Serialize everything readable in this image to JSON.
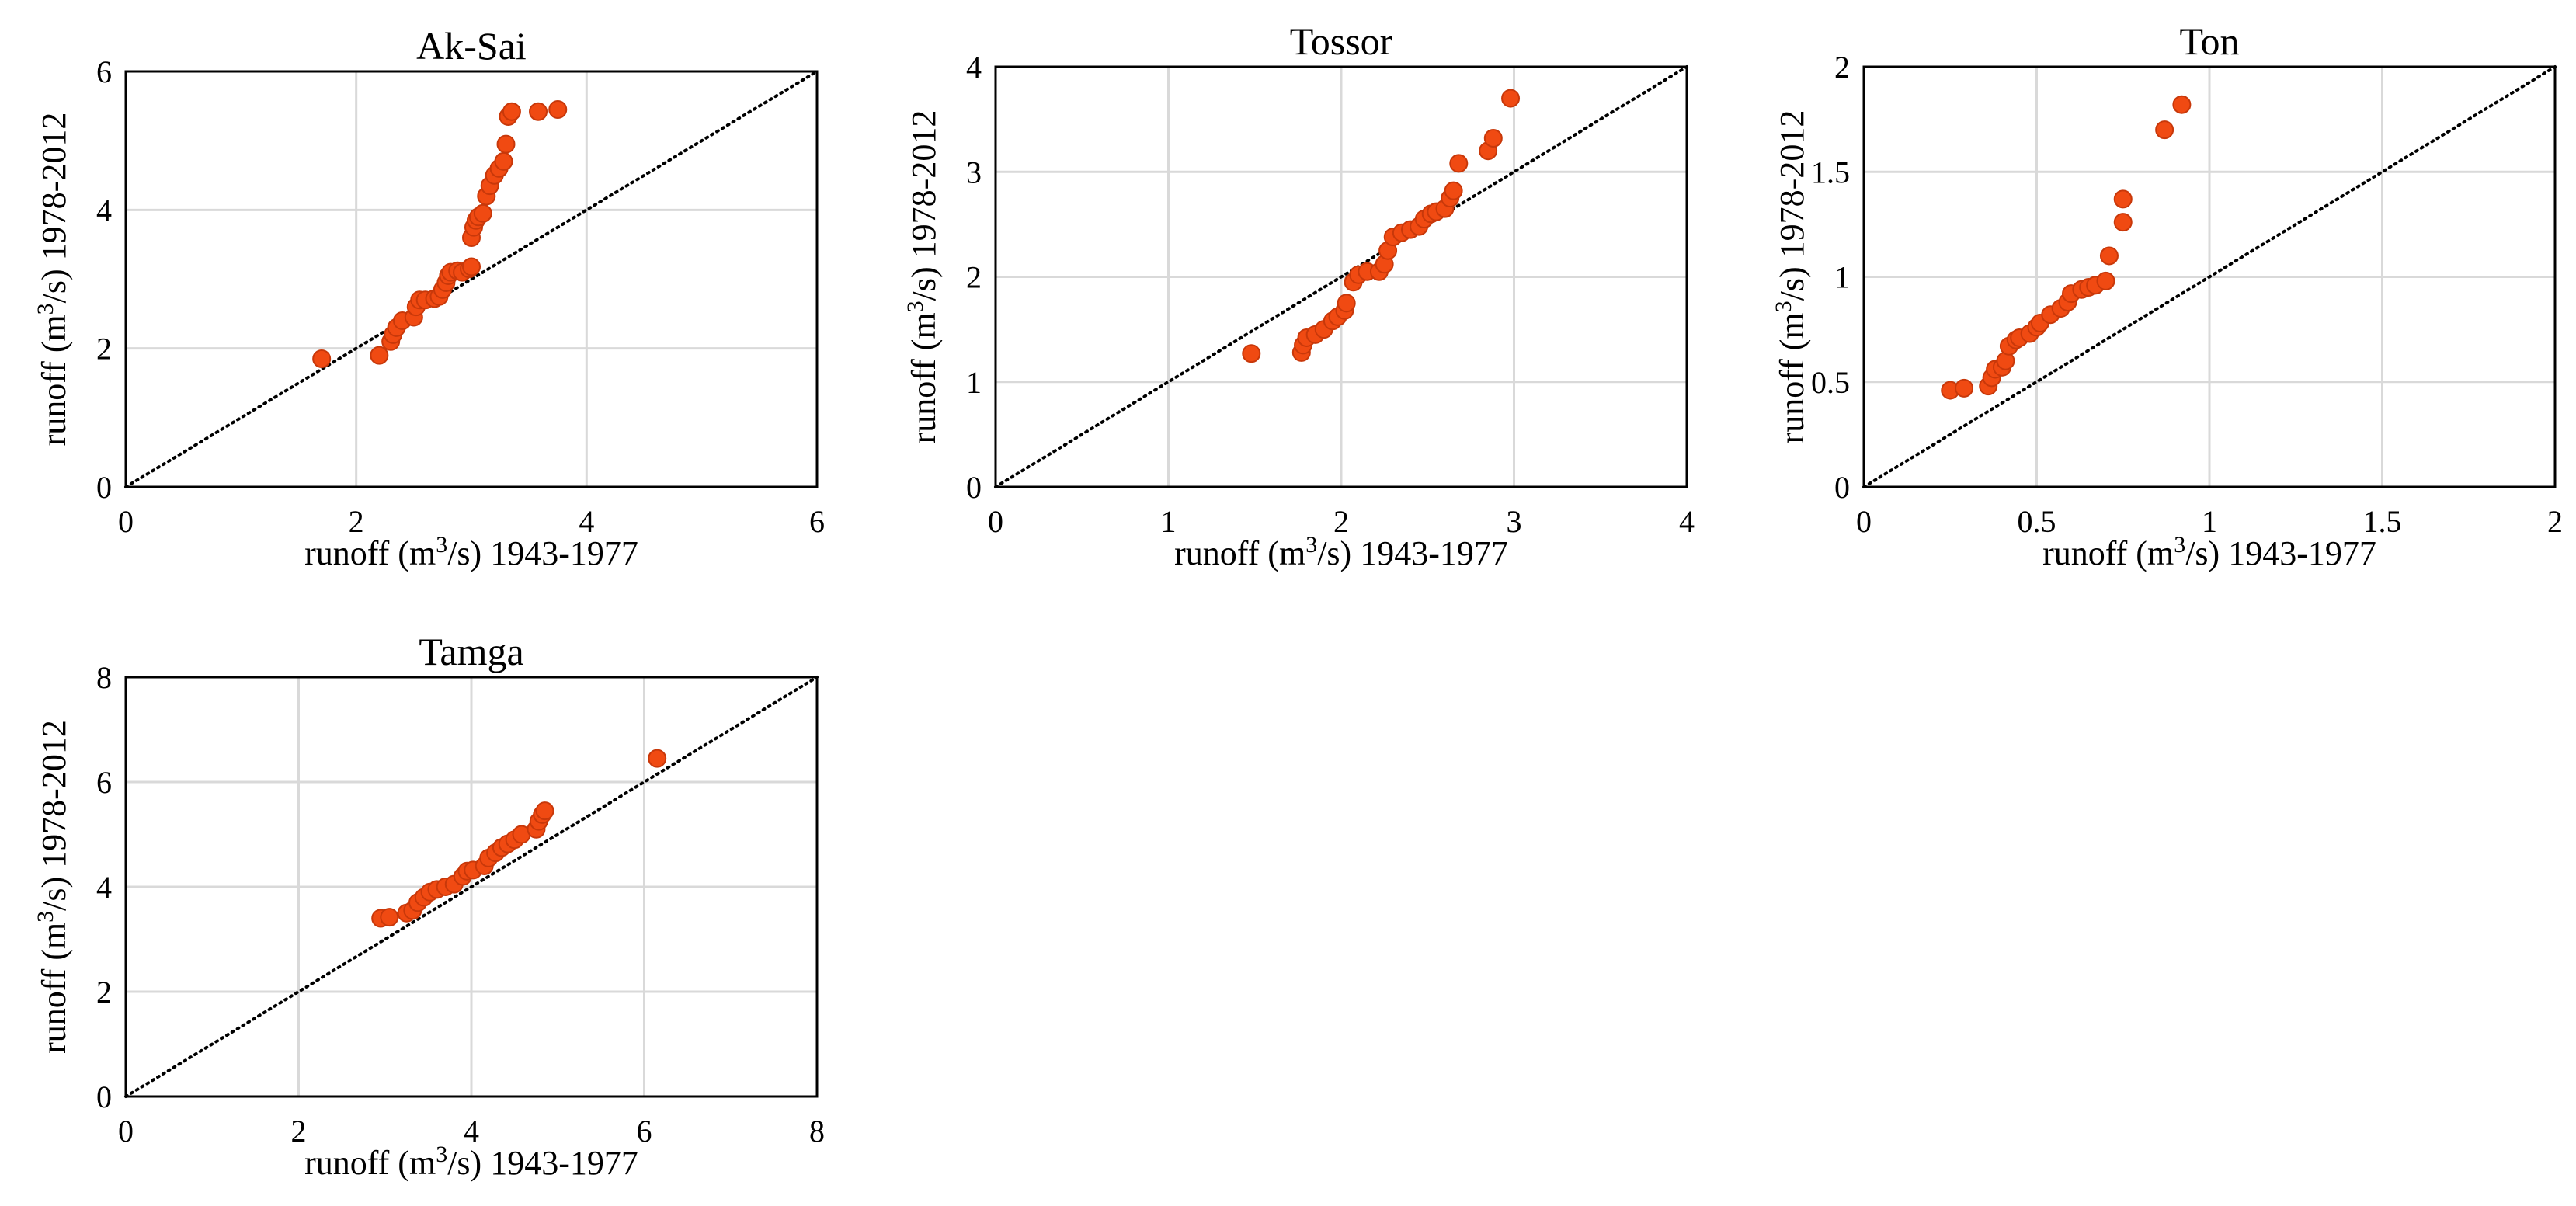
{
  "chart_data": [
    {
      "type": "scatter",
      "title": "Ak-Sai",
      "xlabel": {
        "pre": "runoff (m",
        "sup": "3",
        "post": "/s) 1943-1977"
      },
      "ylabel": {
        "pre": "runoff (m",
        "sup": "3",
        "post": "/s) 1978-2012"
      },
      "xlim": [
        0,
        6
      ],
      "ylim": [
        0,
        6
      ],
      "xticks": [
        0,
        2,
        4,
        6
      ],
      "yticks": [
        0,
        2,
        4,
        6
      ],
      "xtick_labels": [
        "0",
        "2",
        "4",
        "6"
      ],
      "ytick_labels": [
        "0",
        "2",
        "4",
        "6"
      ],
      "reference_line": "1:1 dotted",
      "grid": true,
      "points": [
        [
          1.7,
          1.85
        ],
        [
          2.2,
          1.9
        ],
        [
          2.3,
          2.1
        ],
        [
          2.32,
          2.2
        ],
        [
          2.35,
          2.3
        ],
        [
          2.4,
          2.4
        ],
        [
          2.5,
          2.45
        ],
        [
          2.52,
          2.6
        ],
        [
          2.55,
          2.7
        ],
        [
          2.6,
          2.7
        ],
        [
          2.68,
          2.72
        ],
        [
          2.72,
          2.75
        ],
        [
          2.75,
          2.85
        ],
        [
          2.78,
          2.95
        ],
        [
          2.8,
          3.05
        ],
        [
          2.82,
          3.1
        ],
        [
          2.88,
          3.12
        ],
        [
          2.92,
          3.1
        ],
        [
          2.98,
          3.15
        ],
        [
          3.0,
          3.18
        ],
        [
          3.0,
          3.6
        ],
        [
          3.02,
          3.75
        ],
        [
          3.04,
          3.85
        ],
        [
          3.06,
          3.9
        ],
        [
          3.1,
          3.95
        ],
        [
          3.13,
          4.2
        ],
        [
          3.16,
          4.35
        ],
        [
          3.2,
          4.5
        ],
        [
          3.24,
          4.6
        ],
        [
          3.28,
          4.7
        ],
        [
          3.3,
          4.95
        ],
        [
          3.32,
          5.35
        ],
        [
          3.35,
          5.42
        ],
        [
          3.58,
          5.42
        ],
        [
          3.75,
          5.45
        ]
      ]
    },
    {
      "type": "scatter",
      "title": "Tossor",
      "xlabel": {
        "pre": "runoff (m",
        "sup": "3",
        "post": "/s) 1943-1977"
      },
      "ylabel": {
        "pre": "runoff (m",
        "sup": "3",
        "post": "/s) 1978-2012"
      },
      "xlim": [
        0,
        4
      ],
      "ylim": [
        0,
        4
      ],
      "xticks": [
        0,
        1,
        2,
        3,
        4
      ],
      "yticks": [
        0,
        1,
        2,
        3,
        4
      ],
      "xtick_labels": [
        "0",
        "1",
        "2",
        "3",
        "4"
      ],
      "ytick_labels": [
        "0",
        "1",
        "2",
        "3",
        "4"
      ],
      "reference_line": "1:1 dotted",
      "grid": true,
      "points": [
        [
          1.48,
          1.27
        ],
        [
          1.77,
          1.28
        ],
        [
          1.78,
          1.35
        ],
        [
          1.8,
          1.42
        ],
        [
          1.85,
          1.45
        ],
        [
          1.9,
          1.5
        ],
        [
          1.95,
          1.58
        ],
        [
          1.98,
          1.62
        ],
        [
          2.02,
          1.68
        ],
        [
          2.03,
          1.75
        ],
        [
          2.07,
          1.95
        ],
        [
          2.1,
          2.02
        ],
        [
          2.15,
          2.05
        ],
        [
          2.22,
          2.05
        ],
        [
          2.25,
          2.12
        ],
        [
          2.27,
          2.25
        ],
        [
          2.3,
          2.38
        ],
        [
          2.35,
          2.42
        ],
        [
          2.4,
          2.45
        ],
        [
          2.45,
          2.48
        ],
        [
          2.48,
          2.55
        ],
        [
          2.52,
          2.6
        ],
        [
          2.55,
          2.62
        ],
        [
          2.6,
          2.65
        ],
        [
          2.63,
          2.75
        ],
        [
          2.65,
          2.82
        ],
        [
          2.68,
          3.08
        ],
        [
          2.85,
          3.2
        ],
        [
          2.88,
          3.32
        ],
        [
          2.98,
          3.7
        ]
      ]
    },
    {
      "type": "scatter",
      "title": "Ton",
      "xlabel": {
        "pre": "runoff (m",
        "sup": "3",
        "post": "/s) 1943-1977"
      },
      "ylabel": {
        "pre": "runoff (m",
        "sup": "3",
        "post": "/s) 1978-2012"
      },
      "xlim": [
        0,
        2
      ],
      "ylim": [
        0,
        2
      ],
      "xticks": [
        0,
        0.5,
        1,
        1.5,
        2
      ],
      "yticks": [
        0,
        0.5,
        1,
        1.5,
        2
      ],
      "xtick_labels": [
        "0",
        "0.5",
        "1",
        "1.5",
        "2"
      ],
      "ytick_labels": [
        "0",
        "0.5",
        "1",
        "1.5",
        "2"
      ],
      "reference_line": "1:1 dotted",
      "grid": true,
      "points": [
        [
          0.25,
          0.46
        ],
        [
          0.29,
          0.47
        ],
        [
          0.36,
          0.48
        ],
        [
          0.37,
          0.52
        ],
        [
          0.38,
          0.56
        ],
        [
          0.4,
          0.57
        ],
        [
          0.41,
          0.6
        ],
        [
          0.42,
          0.67
        ],
        [
          0.44,
          0.7
        ],
        [
          0.45,
          0.71
        ],
        [
          0.48,
          0.73
        ],
        [
          0.5,
          0.76
        ],
        [
          0.51,
          0.78
        ],
        [
          0.54,
          0.82
        ],
        [
          0.57,
          0.85
        ],
        [
          0.59,
          0.88
        ],
        [
          0.6,
          0.92
        ],
        [
          0.63,
          0.94
        ],
        [
          0.65,
          0.95
        ],
        [
          0.67,
          0.96
        ],
        [
          0.7,
          0.98
        ],
        [
          0.71,
          1.1
        ],
        [
          0.75,
          1.26
        ],
        [
          0.75,
          1.37
        ],
        [
          0.87,
          1.7
        ],
        [
          0.92,
          1.82
        ]
      ]
    },
    {
      "type": "scatter",
      "title": "Tamga",
      "xlabel": {
        "pre": "runoff (m",
        "sup": "3",
        "post": "/s) 1943-1977"
      },
      "ylabel": {
        "pre": "runoff (m",
        "sup": "3",
        "post": "/s) 1978-2012"
      },
      "xlim": [
        0,
        8
      ],
      "ylim": [
        0,
        8
      ],
      "xticks": [
        0,
        2,
        4,
        6,
        8
      ],
      "yticks": [
        0,
        2,
        4,
        6,
        8
      ],
      "xtick_labels": [
        "0",
        "2",
        "4",
        "6",
        "8"
      ],
      "ytick_labels": [
        "0",
        "2",
        "4",
        "6",
        "8"
      ],
      "reference_line": "1:1 dotted",
      "grid": true,
      "points": [
        [
          2.95,
          3.4
        ],
        [
          3.05,
          3.42
        ],
        [
          3.25,
          3.5
        ],
        [
          3.32,
          3.55
        ],
        [
          3.38,
          3.7
        ],
        [
          3.45,
          3.8
        ],
        [
          3.52,
          3.9
        ],
        [
          3.6,
          3.95
        ],
        [
          3.7,
          4.0
        ],
        [
          3.8,
          4.05
        ],
        [
          3.9,
          4.2
        ],
        [
          3.95,
          4.3
        ],
        [
          4.02,
          4.32
        ],
        [
          4.15,
          4.4
        ],
        [
          4.2,
          4.55
        ],
        [
          4.28,
          4.65
        ],
        [
          4.35,
          4.75
        ],
        [
          4.42,
          4.82
        ],
        [
          4.5,
          4.9
        ],
        [
          4.58,
          5.0
        ],
        [
          4.75,
          5.1
        ],
        [
          4.78,
          5.25
        ],
        [
          4.82,
          5.38
        ],
        [
          4.85,
          5.45
        ],
        [
          6.15,
          6.45
        ]
      ]
    }
  ]
}
